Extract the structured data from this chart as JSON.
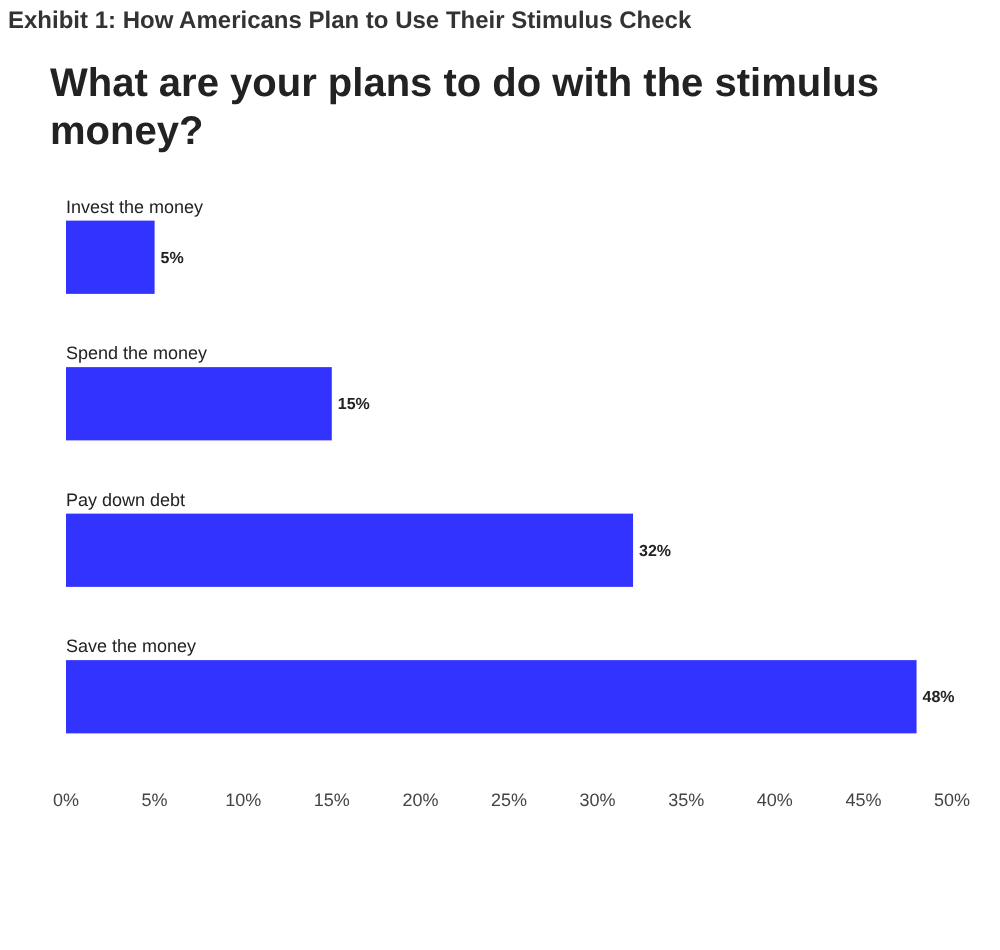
{
  "chart_data": {
    "type": "bar",
    "orientation": "horizontal",
    "title": "Exhibit 1: How Americans Plan to Use Their Stimulus Check",
    "subtitle": "What are your plans to do with the stimulus money?",
    "categories": [
      "Invest the money",
      "Spend the money",
      "Pay down debt",
      "Save the money"
    ],
    "values": [
      5,
      15,
      32,
      48
    ],
    "value_labels": [
      "5%",
      "15%",
      "32%",
      "48%"
    ],
    "color": "#3333ff",
    "xlim": [
      0,
      50
    ],
    "xticks": [
      {
        "value": 0,
        "label": "0%"
      },
      {
        "value": 5,
        "label": "5%"
      },
      {
        "value": 10,
        "label": "10%"
      },
      {
        "value": 15,
        "label": "15%"
      },
      {
        "value": 20,
        "label": "20%"
      },
      {
        "value": 25,
        "label": "25%"
      },
      {
        "value": 30,
        "label": "30%"
      },
      {
        "value": 35,
        "label": "35%"
      },
      {
        "value": 40,
        "label": "40%"
      },
      {
        "value": 45,
        "label": "45%"
      },
      {
        "value": 50,
        "label": "50%"
      }
    ],
    "grid": false
  }
}
